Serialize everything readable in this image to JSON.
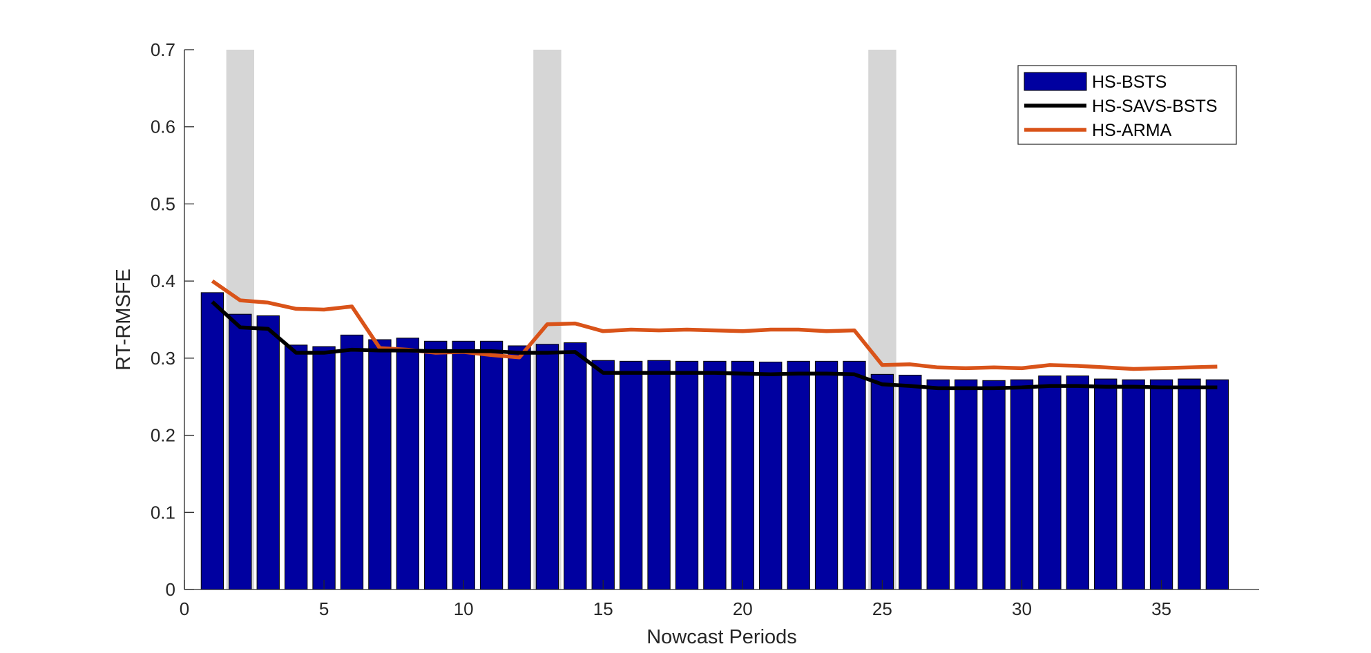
{
  "chart_data": {
    "type": "bar",
    "title": "",
    "xlabel": "Nowcast Periods",
    "ylabel": "RT-RMSFE",
    "xlim": [
      0,
      38.5
    ],
    "ylim": [
      0,
      0.7
    ],
    "x_ticks": [
      0,
      5,
      10,
      15,
      20,
      25,
      30,
      35
    ],
    "y_ticks": [
      0,
      0.1,
      0.2,
      0.3,
      0.4,
      0.5,
      0.6,
      0.7
    ],
    "x": [
      1,
      2,
      3,
      4,
      5,
      6,
      7,
      8,
      9,
      10,
      11,
      12,
      13,
      14,
      15,
      16,
      17,
      18,
      19,
      20,
      21,
      22,
      23,
      24,
      25,
      26,
      27,
      28,
      29,
      30,
      31,
      32,
      33,
      34,
      35,
      36,
      37
    ],
    "shaded_periods": [
      2,
      13,
      25
    ],
    "grid": false,
    "legend_position": "top-right",
    "series": [
      {
        "name": "HS-BSTS",
        "kind": "bar",
        "color": "#0000a0",
        "values": [
          0.385,
          0.357,
          0.355,
          0.317,
          0.315,
          0.33,
          0.324,
          0.326,
          0.322,
          0.322,
          0.322,
          0.316,
          0.318,
          0.32,
          0.297,
          0.296,
          0.297,
          0.296,
          0.296,
          0.296,
          0.295,
          0.296,
          0.296,
          0.296,
          0.279,
          0.278,
          0.272,
          0.272,
          0.271,
          0.272,
          0.277,
          0.277,
          0.273,
          0.272,
          0.272,
          0.273,
          0.272
        ]
      },
      {
        "name": "HS-SAVS-BSTS",
        "kind": "line",
        "color": "#000000",
        "values": [
          0.373,
          0.34,
          0.338,
          0.307,
          0.307,
          0.311,
          0.31,
          0.31,
          0.309,
          0.309,
          0.309,
          0.307,
          0.307,
          0.308,
          0.281,
          0.281,
          0.281,
          0.281,
          0.281,
          0.28,
          0.279,
          0.28,
          0.28,
          0.279,
          0.266,
          0.264,
          0.261,
          0.261,
          0.261,
          0.262,
          0.264,
          0.264,
          0.263,
          0.263,
          0.262,
          0.262,
          0.262
        ]
      },
      {
        "name": "HS-ARMA",
        "kind": "line",
        "color": "#d95319",
        "values": [
          0.4,
          0.375,
          0.372,
          0.364,
          0.363,
          0.367,
          0.313,
          0.311,
          0.307,
          0.308,
          0.304,
          0.301,
          0.344,
          0.345,
          0.335,
          0.337,
          0.336,
          0.337,
          0.336,
          0.335,
          0.337,
          0.337,
          0.335,
          0.336,
          0.291,
          0.292,
          0.288,
          0.287,
          0.288,
          0.287,
          0.291,
          0.29,
          0.288,
          0.286,
          0.287,
          0.288,
          0.289
        ]
      }
    ]
  }
}
